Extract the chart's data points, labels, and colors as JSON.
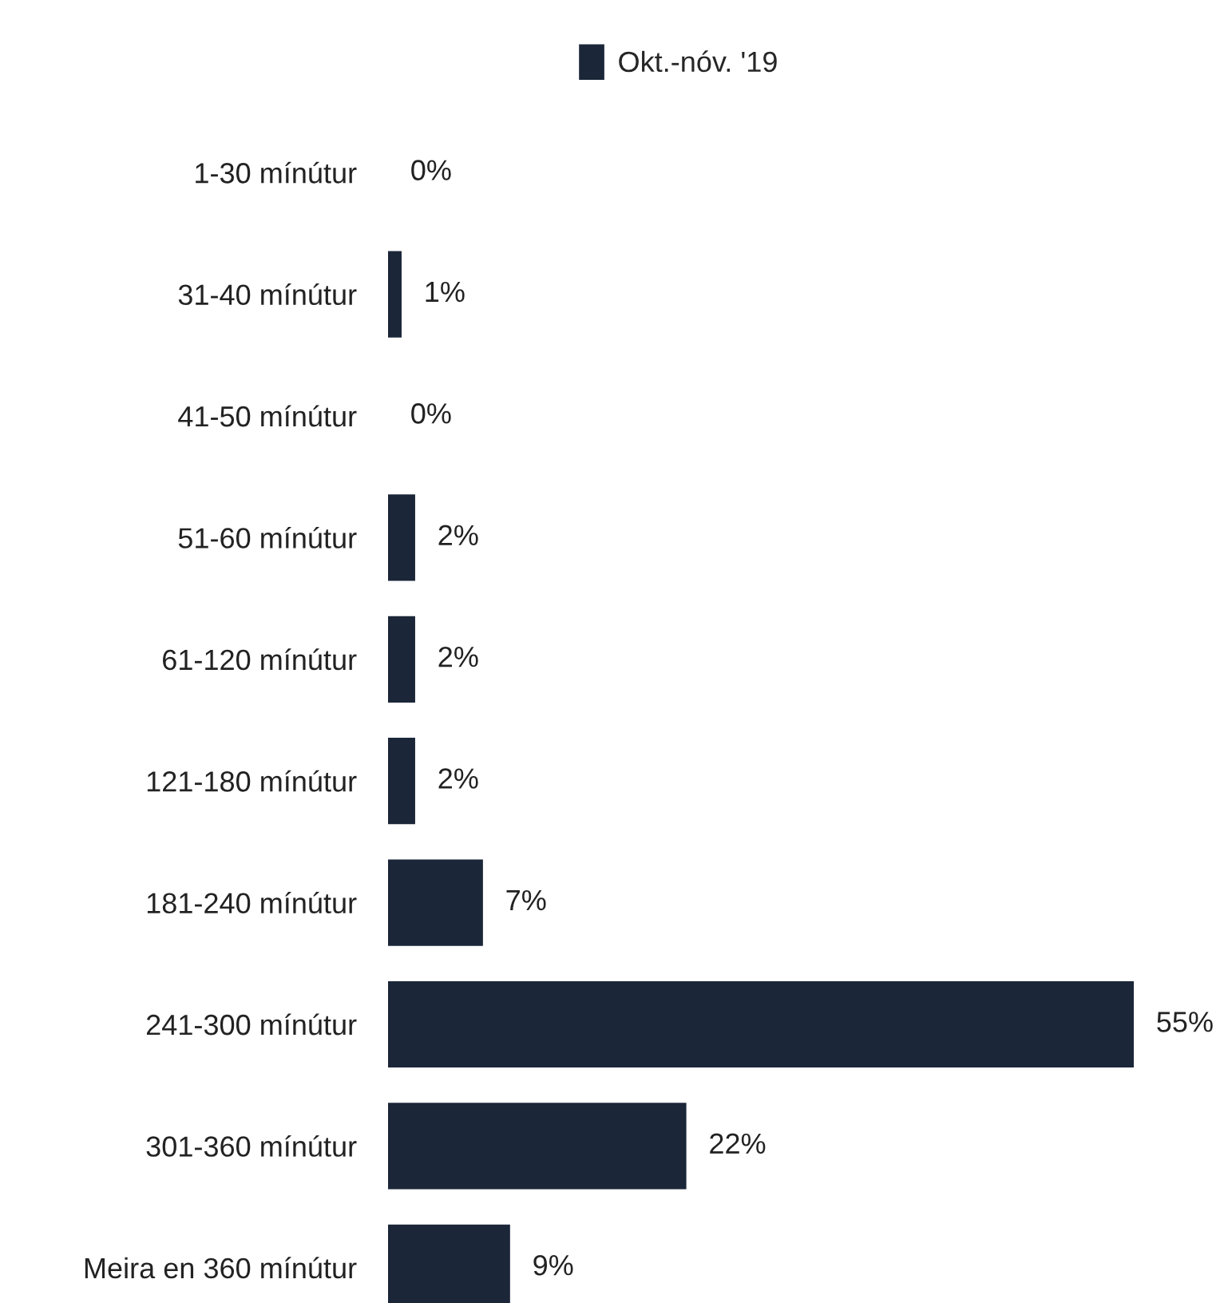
{
  "chart_data": {
    "type": "bar",
    "orientation": "horizontal",
    "categories": [
      "1-30 mínútur",
      "31-40 mínútur",
      "41-50 mínútur",
      "51-60 mínútur",
      "61-120 mínútur",
      "121-180 mínútur",
      "181-240 mínútur",
      "241-300 mínútur",
      "301-360 mínútur",
      "Meira en 360 mínútur"
    ],
    "series": [
      {
        "name": "Okt.-nóv. '19",
        "color": "#1b2638",
        "values": [
          0,
          1,
          0,
          2,
          2,
          2,
          7,
          55,
          22,
          9
        ],
        "value_labels": [
          "0%",
          "1%",
          "0%",
          "2%",
          "2%",
          "2%",
          "7%",
          "55%",
          "22%",
          "9%"
        ]
      }
    ],
    "legend": "top"
  }
}
